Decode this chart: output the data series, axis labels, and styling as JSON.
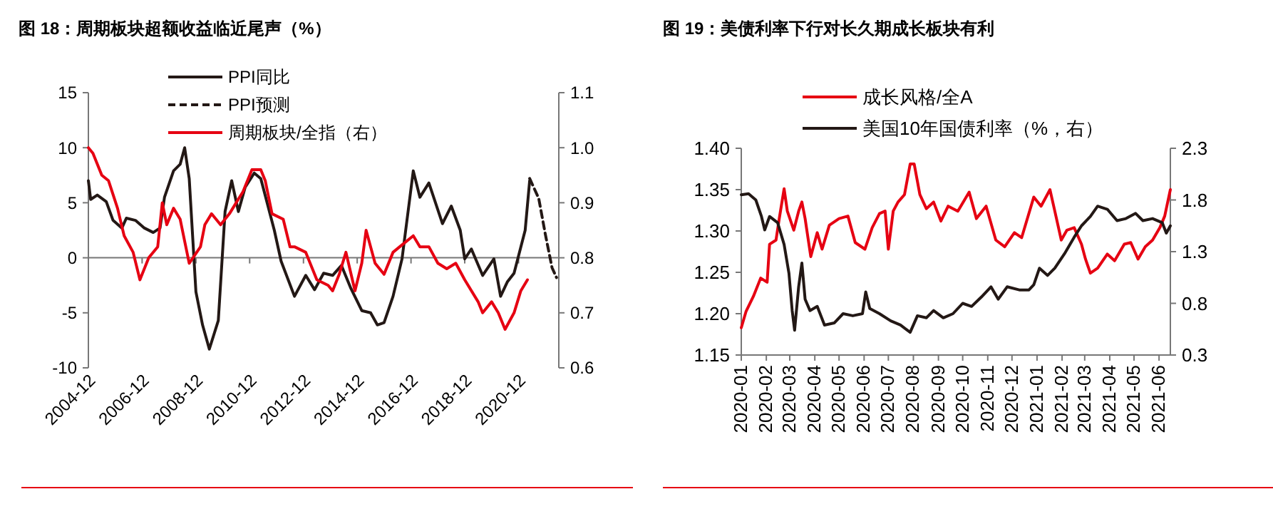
{
  "chart_data": [
    {
      "type": "line",
      "title": "图 18：周期板块超额收益临近尾声（%）",
      "xlim": [
        "2004-12",
        "2022-06"
      ],
      "xticks": [
        {
          "value": "2004-12",
          "label": "2004-12"
        },
        {
          "value": "2006-12",
          "label": "2006-12"
        },
        {
          "value": "2008-12",
          "label": "2008-12"
        },
        {
          "value": "2010-12",
          "label": "2010-12"
        },
        {
          "value": "2012-12",
          "label": "2012-12"
        },
        {
          "value": "2014-12",
          "label": "2014-12"
        },
        {
          "value": "2016-12",
          "label": "2016-12"
        },
        {
          "value": "2018-12",
          "label": "2018-12"
        },
        {
          "value": "2020-12",
          "label": "2020-12"
        }
      ],
      "ylim": [
        -10,
        15
      ],
      "yticks": [
        -10,
        -5,
        0,
        5,
        10,
        15
      ],
      "y2lim": [
        0.6,
        1.1
      ],
      "y2ticks": [
        {
          "value": 0.6,
          "label": "0.6"
        },
        {
          "value": 0.7,
          "label": "0.7"
        },
        {
          "value": 0.8,
          "label": "0.8"
        },
        {
          "value": 0.9,
          "label": "0.9"
        },
        {
          "value": 1.0,
          "label": "1.0"
        },
        {
          "value": 1.1,
          "label": "1.1"
        }
      ],
      "legend": "top",
      "series": [
        {
          "name": "PPI同比",
          "color": "#231815",
          "x": [
            "2004-12",
            "2005-01",
            "2005-04",
            "2005-08",
            "2005-11",
            "2006-03",
            "2006-05",
            "2006-09",
            "2007-01",
            "2007-05",
            "2007-08",
            "2007-10",
            "2008-02",
            "2008-05",
            "2008-07",
            "2008-09",
            "2008-12",
            "2009-03",
            "2009-06",
            "2009-10",
            "2010-01",
            "2010-04",
            "2010-07",
            "2010-10",
            "2011-02",
            "2011-05",
            "2011-11",
            "2012-02",
            "2012-08",
            "2013-01",
            "2013-05",
            "2013-09",
            "2014-01",
            "2014-05",
            "2014-09",
            "2015-02",
            "2015-06",
            "2015-09",
            "2015-12",
            "2016-04",
            "2016-08",
            "2017-01",
            "2017-04",
            "2017-08",
            "2018-02",
            "2018-06",
            "2018-10",
            "2018-12",
            "2019-03",
            "2019-08",
            "2020-01",
            "2020-04",
            "2020-07",
            "2020-10",
            "2021-03",
            "2021-05"
          ],
          "values": [
            7.0,
            5.3,
            5.7,
            5.1,
            3.4,
            2.7,
            3.6,
            3.4,
            2.7,
            2.3,
            2.7,
            5.5,
            7.9,
            8.5,
            10.0,
            7.2,
            -3.1,
            -6.1,
            -8.3,
            -5.7,
            4.2,
            7.0,
            4.2,
            6.4,
            7.7,
            7.2,
            2.5,
            -0.3,
            -3.5,
            -1.6,
            -2.9,
            -1.4,
            -1.6,
            -0.7,
            -2.7,
            -4.8,
            -5.0,
            -6.1,
            -5.9,
            -3.5,
            -0.1,
            7.9,
            5.5,
            6.8,
            3.1,
            4.7,
            2.5,
            -0.1,
            0.8,
            -1.6,
            -0.1,
            -3.5,
            -2.2,
            -1.4,
            2.5,
            7.0
          ]
        },
        {
          "name": "PPI预测",
          "color": "#231815",
          "line_style": "dashed",
          "x": [
            "2021-05",
            "2021-09",
            "2021-12",
            "2022-03",
            "2022-05"
          ],
          "values": [
            7.2,
            5.4,
            2.1,
            -0.9,
            -1.8
          ]
        },
        {
          "name": "周期板块/全指（右）",
          "color": "#e60012",
          "axis": "y2",
          "x": [
            "2004-12",
            "2005-02",
            "2005-06",
            "2005-09",
            "2006-01",
            "2006-04",
            "2006-08",
            "2006-11",
            "2007-03",
            "2007-07",
            "2007-09",
            "2007-11",
            "2008-02",
            "2008-05",
            "2008-07",
            "2008-09",
            "2009-02",
            "2009-04",
            "2009-07",
            "2009-11",
            "2010-03",
            "2010-06",
            "2010-09",
            "2011-01",
            "2011-05",
            "2011-07",
            "2011-10",
            "2012-03",
            "2012-06",
            "2012-08",
            "2013-01",
            "2013-06",
            "2013-11",
            "2014-01",
            "2014-04",
            "2014-07",
            "2014-11",
            "2015-02",
            "2015-04",
            "2015-08",
            "2015-12",
            "2016-04",
            "2016-07",
            "2017-01",
            "2017-04",
            "2017-08",
            "2017-12",
            "2018-04",
            "2018-08",
            "2018-12",
            "2019-06",
            "2019-08",
            "2019-12",
            "2020-03",
            "2020-06",
            "2020-10",
            "2021-01",
            "2021-04"
          ],
          "values": [
            1.0,
            0.99,
            0.95,
            0.94,
            0.89,
            0.84,
            0.81,
            0.76,
            0.8,
            0.82,
            0.9,
            0.86,
            0.89,
            0.87,
            0.83,
            0.79,
            0.82,
            0.86,
            0.88,
            0.86,
            0.88,
            0.9,
            0.92,
            0.96,
            0.96,
            0.94,
            0.88,
            0.87,
            0.82,
            0.82,
            0.81,
            0.76,
            0.75,
            0.74,
            0.77,
            0.81,
            0.74,
            0.79,
            0.85,
            0.79,
            0.77,
            0.81,
            0.82,
            0.84,
            0.82,
            0.82,
            0.79,
            0.78,
            0.79,
            0.76,
            0.72,
            0.7,
            0.72,
            0.7,
            0.67,
            0.7,
            0.74,
            0.76
          ]
        }
      ]
    },
    {
      "type": "line",
      "title": "图 19：美债利率下行对长久期成长板块有利",
      "xlim": [
        "2020-01-01",
        "2021-06-15"
      ],
      "xticks": [
        {
          "value": "2020-01",
          "label": "2020-01"
        },
        {
          "value": "2020-02",
          "label": "2020-02"
        },
        {
          "value": "2020-03",
          "label": "2020-03"
        },
        {
          "value": "2020-04",
          "label": "2020-04"
        },
        {
          "value": "2020-05",
          "label": "2020-05"
        },
        {
          "value": "2020-06",
          "label": "2020-06"
        },
        {
          "value": "2020-07",
          "label": "2020-07"
        },
        {
          "value": "2020-08",
          "label": "2020-08"
        },
        {
          "value": "2020-09",
          "label": "2020-09"
        },
        {
          "value": "2020-10",
          "label": "2020-10"
        },
        {
          "value": "2020-11",
          "label": "2020-11"
        },
        {
          "value": "2020-12",
          "label": "2020-12"
        },
        {
          "value": "2021-01",
          "label": "2021-01"
        },
        {
          "value": "2021-02",
          "label": "2021-02"
        },
        {
          "value": "2021-03",
          "label": "2021-03"
        },
        {
          "value": "2021-04",
          "label": "2021-04"
        },
        {
          "value": "2021-05",
          "label": "2021-05"
        },
        {
          "value": "2021-06",
          "label": "2021-06"
        }
      ],
      "ylim": [
        1.15,
        1.4
      ],
      "yticks": [
        {
          "value": 1.15,
          "label": "1.15"
        },
        {
          "value": 1.2,
          "label": "1.20"
        },
        {
          "value": 1.25,
          "label": "1.25"
        },
        {
          "value": 1.3,
          "label": "1.30"
        },
        {
          "value": 1.35,
          "label": "1.35"
        },
        {
          "value": 1.4,
          "label": "1.40"
        }
      ],
      "y2lim": [
        0.3,
        2.3
      ],
      "y2ticks": [
        0.3,
        0.8,
        1.3,
        1.8,
        2.3
      ],
      "legend": "top",
      "series": [
        {
          "name": "成长风格/全A",
          "color": "#e60012",
          "x": [
            "2020-01-01",
            "2020-01-07",
            "2020-01-16",
            "2020-01-25",
            "2020-02-02",
            "2020-02-05",
            "2020-02-13",
            "2020-02-17",
            "2020-02-23",
            "2020-02-27",
            "2020-03-06",
            "2020-03-12",
            "2020-03-16",
            "2020-03-20",
            "2020-03-27",
            "2020-04-04",
            "2020-04-10",
            "2020-04-19",
            "2020-05-01",
            "2020-05-12",
            "2020-05-21",
            "2020-06-02",
            "2020-06-11",
            "2020-06-20",
            "2020-06-27",
            "2020-07-01",
            "2020-07-07",
            "2020-07-13",
            "2020-07-21",
            "2020-07-28",
            "2020-08-02",
            "2020-08-09",
            "2020-08-17",
            "2020-08-26",
            "2020-09-04",
            "2020-09-13",
            "2020-09-25",
            "2020-10-09",
            "2020-10-18",
            "2020-10-30",
            "2020-11-11",
            "2020-11-22",
            "2020-12-04",
            "2020-12-13",
            "2020-12-28",
            "2021-01-06",
            "2021-01-17",
            "2021-01-23",
            "2021-01-31",
            "2021-02-07",
            "2021-02-16",
            "2021-02-25",
            "2021-03-02",
            "2021-03-08",
            "2021-03-17",
            "2021-03-29",
            "2021-04-07",
            "2021-04-19",
            "2021-04-27",
            "2021-05-06",
            "2021-05-15",
            "2021-05-24",
            "2021-06-02",
            "2021-06-08",
            "2021-06-15"
          ],
          "values": [
            1.183,
            1.203,
            1.221,
            1.243,
            1.238,
            1.284,
            1.289,
            1.315,
            1.351,
            1.324,
            1.301,
            1.324,
            1.335,
            1.315,
            1.269,
            1.298,
            1.278,
            1.307,
            1.315,
            1.318,
            1.286,
            1.278,
            1.304,
            1.321,
            1.324,
            1.278,
            1.324,
            1.335,
            1.344,
            1.381,
            1.381,
            1.344,
            1.327,
            1.335,
            1.312,
            1.33,
            1.324,
            1.347,
            1.315,
            1.33,
            1.289,
            1.281,
            1.298,
            1.292,
            1.341,
            1.33,
            1.35,
            1.324,
            1.289,
            1.301,
            1.304,
            1.284,
            1.266,
            1.249,
            1.255,
            1.272,
            1.264,
            1.284,
            1.286,
            1.266,
            1.281,
            1.289,
            1.304,
            1.318,
            1.35
          ]
        },
        {
          "name": "美国10年国债利率（%，右）",
          "color": "#231815",
          "axis": "y2",
          "x": [
            "2020-01-01",
            "2020-01-10",
            "2020-01-19",
            "2020-01-26",
            "2020-01-30",
            "2020-02-05",
            "2020-02-15",
            "2020-02-23",
            "2020-02-29",
            "2020-03-04",
            "2020-03-07",
            "2020-03-12",
            "2020-03-16",
            "2020-03-20",
            "2020-03-26",
            "2020-04-04",
            "2020-04-13",
            "2020-04-25",
            "2020-05-06",
            "2020-05-18",
            "2020-05-30",
            "2020-06-03",
            "2020-06-08",
            "2020-06-20",
            "2020-07-04",
            "2020-07-16",
            "2020-07-28",
            "2020-08-06",
            "2020-08-17",
            "2020-08-26",
            "2020-09-07",
            "2020-09-19",
            "2020-10-01",
            "2020-10-12",
            "2020-10-24",
            "2020-11-05",
            "2020-11-14",
            "2020-11-25",
            "2020-12-10",
            "2020-12-22",
            "2020-12-28",
            "2021-01-04",
            "2021-01-14",
            "2021-01-23",
            "2021-02-04",
            "2021-02-16",
            "2021-02-25",
            "2021-03-08",
            "2021-03-17",
            "2021-03-29",
            "2021-04-10",
            "2021-04-21",
            "2021-05-03",
            "2021-05-12",
            "2021-05-24",
            "2021-06-05",
            "2021-06-10",
            "2021-06-15"
          ],
          "values": [
            1.85,
            1.86,
            1.8,
            1.64,
            1.51,
            1.64,
            1.58,
            1.37,
            1.09,
            0.73,
            0.54,
            0.96,
            1.19,
            0.84,
            0.73,
            0.77,
            0.59,
            0.61,
            0.7,
            0.68,
            0.7,
            0.91,
            0.75,
            0.7,
            0.63,
            0.59,
            0.52,
            0.68,
            0.66,
            0.73,
            0.66,
            0.7,
            0.8,
            0.77,
            0.86,
            0.96,
            0.84,
            0.96,
            0.93,
            0.93,
            0.98,
            1.14,
            1.07,
            1.14,
            1.28,
            1.44,
            1.55,
            1.64,
            1.74,
            1.71,
            1.6,
            1.62,
            1.67,
            1.6,
            1.62,
            1.58,
            1.48,
            1.55
          ]
        }
      ]
    }
  ]
}
